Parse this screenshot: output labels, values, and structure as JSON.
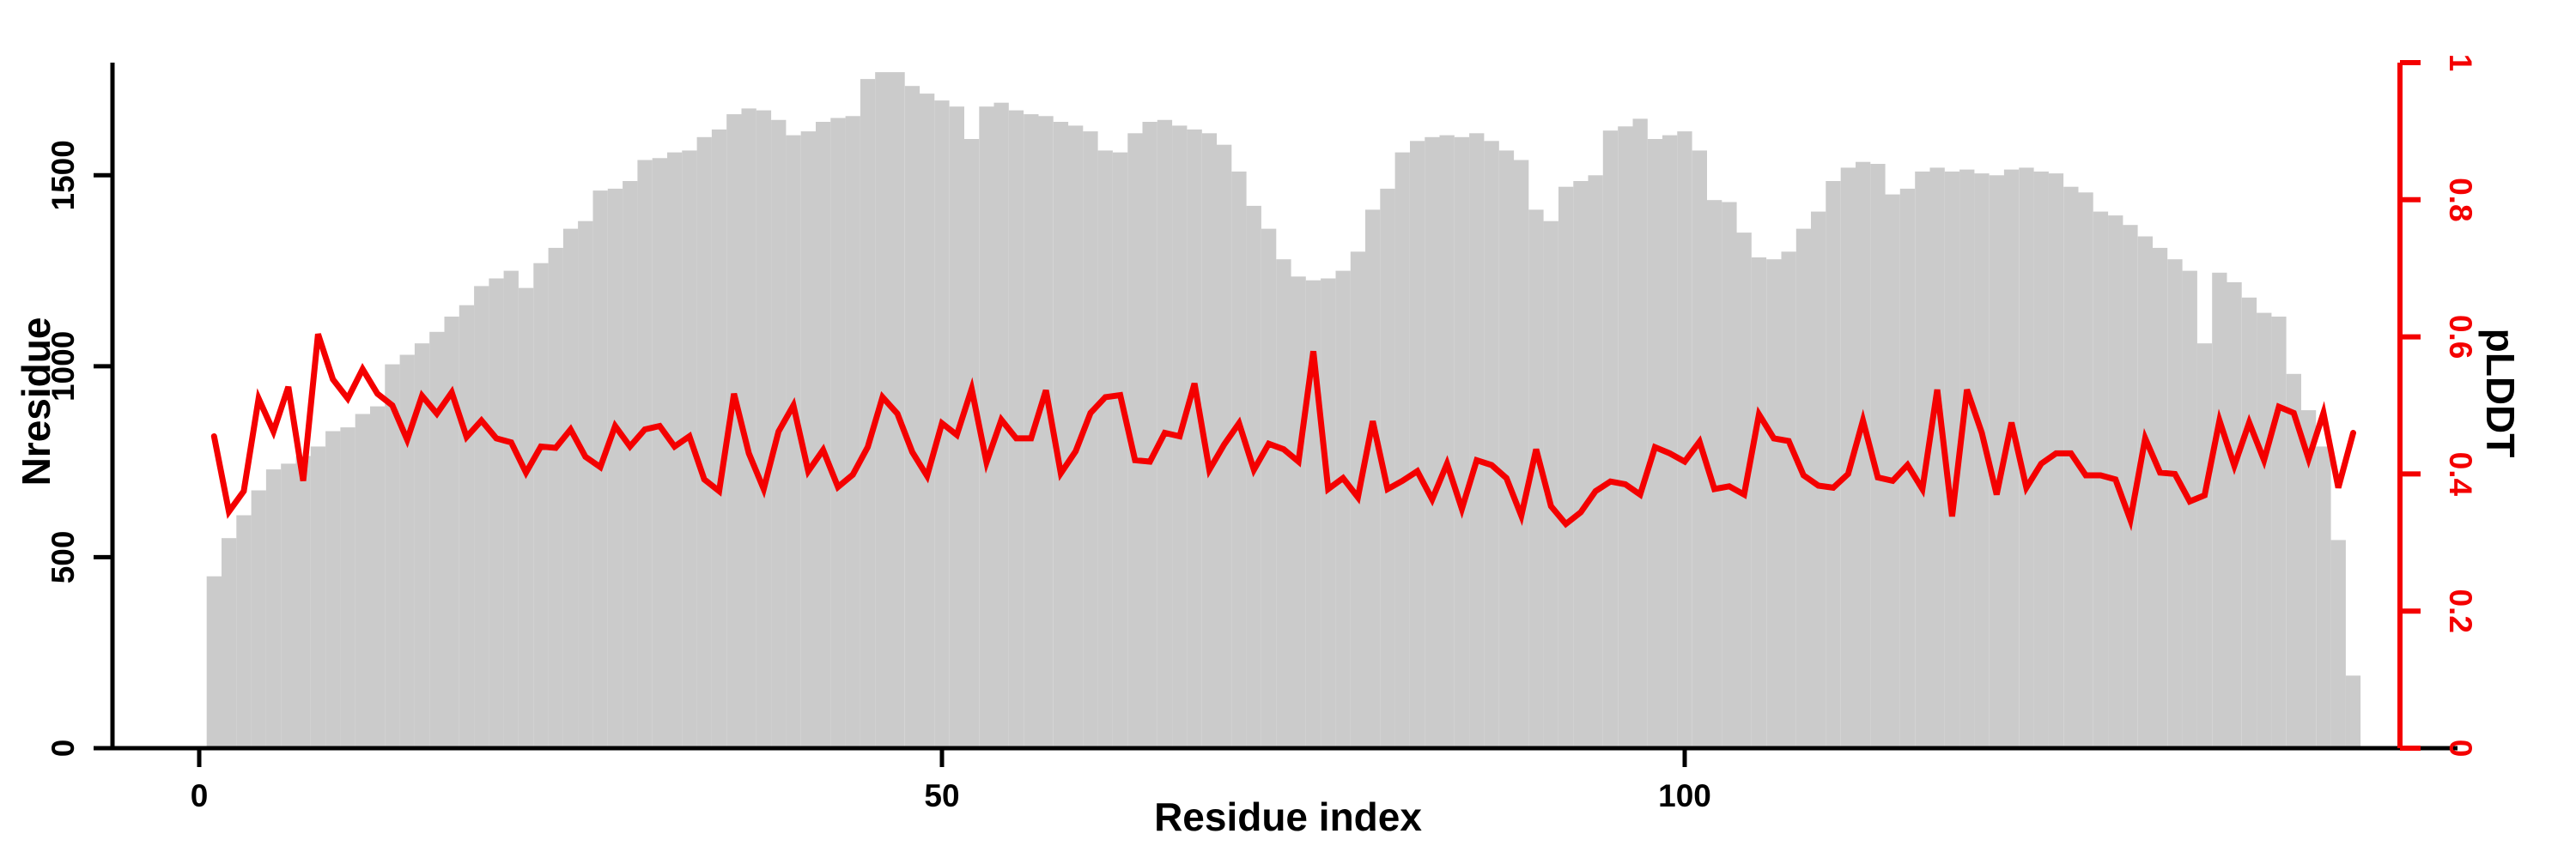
{
  "figure": {
    "background": "#ffffff",
    "bar_color": "#cbcbcb",
    "line_color": "#f40000",
    "axis_color": "#000000",
    "right_axis_color": "#f40000"
  },
  "chart_data": {
    "type": "bar",
    "title": "",
    "xlabel": "Residue index",
    "ylabel_left": "Nresidue",
    "ylabel_right": "pLDDT",
    "x_ticks": [
      0,
      50,
      100
    ],
    "y_ticks_left": [
      0,
      500,
      1000,
      1500
    ],
    "y_ticks_right": [
      0,
      0.2,
      0.4,
      0.6,
      0.8,
      1
    ],
    "y_tick_labels_right": [
      "0",
      "0.2",
      "0.4",
      "0.6",
      "0.8",
      "1"
    ],
    "xlim": [
      0,
      148
    ],
    "ylim_left": [
      0,
      1795
    ],
    "ylim_right": [
      0,
      1
    ],
    "grid": false,
    "legend_position": "none",
    "x": [
      1,
      2,
      3,
      4,
      5,
      6,
      7,
      8,
      9,
      10,
      11,
      12,
      13,
      14,
      15,
      16,
      17,
      18,
      19,
      20,
      21,
      22,
      23,
      24,
      25,
      26,
      27,
      28,
      29,
      30,
      31,
      32,
      33,
      34,
      35,
      36,
      37,
      38,
      39,
      40,
      41,
      42,
      43,
      44,
      45,
      46,
      47,
      48,
      49,
      50,
      51,
      52,
      53,
      54,
      55,
      56,
      57,
      58,
      59,
      60,
      61,
      62,
      63,
      64,
      65,
      66,
      67,
      68,
      69,
      70,
      71,
      72,
      73,
      74,
      75,
      76,
      77,
      78,
      79,
      80,
      81,
      82,
      83,
      84,
      85,
      86,
      87,
      88,
      89,
      90,
      91,
      92,
      93,
      94,
      95,
      96,
      97,
      98,
      99,
      100,
      101,
      102,
      103,
      104,
      105,
      106,
      107,
      108,
      109,
      110,
      111,
      112,
      113,
      114,
      115,
      116,
      117,
      118,
      119,
      120,
      121,
      122,
      123,
      124,
      125,
      126,
      127,
      128,
      129,
      130,
      131,
      132,
      133,
      134,
      135,
      136,
      137,
      138,
      139,
      140,
      141,
      142,
      143,
      144,
      145
    ],
    "series": [
      {
        "name": "Nresidue",
        "type": "bar",
        "axis": "left",
        "color": "#cbcbcb",
        "values": [
          450,
          550,
          610,
          675,
          730,
          745,
          765,
          790,
          830,
          840,
          875,
          895,
          1005,
          1030,
          1060,
          1090,
          1130,
          1160,
          1210,
          1230,
          1250,
          1205,
          1270,
          1310,
          1360,
          1380,
          1460,
          1465,
          1485,
          1540,
          1545,
          1560,
          1565,
          1600,
          1620,
          1660,
          1675,
          1670,
          1645,
          1605,
          1615,
          1640,
          1650,
          1655,
          1752,
          1770,
          1770,
          1734,
          1714,
          1696,
          1680,
          1595,
          1680,
          1690,
          1670,
          1660,
          1655,
          1640,
          1630,
          1615,
          1565,
          1560,
          1610,
          1640,
          1645,
          1630,
          1620,
          1610,
          1580,
          1510,
          1420,
          1360,
          1280,
          1235,
          1225,
          1230,
          1250,
          1300,
          1410,
          1465,
          1560,
          1590,
          1600,
          1605,
          1600,
          1610,
          1590,
          1565,
          1540,
          1410,
          1380,
          1470,
          1485,
          1500,
          1617,
          1628,
          1648,
          1595,
          1605,
          1615,
          1565,
          1435,
          1430,
          1350,
          1285,
          1280,
          1300,
          1360,
          1405,
          1485,
          1520,
          1535,
          1530,
          1450,
          1465,
          1510,
          1520,
          1510,
          1515,
          1505,
          1500,
          1515,
          1520,
          1510,
          1505,
          1470,
          1455,
          1405,
          1395,
          1370,
          1340,
          1310,
          1280,
          1250,
          1060,
          1245,
          1220,
          1180,
          1140,
          1130,
          980,
          885,
          790,
          545,
          190
        ]
      },
      {
        "name": "pLDDT",
        "type": "line",
        "axis": "right",
        "color": "#f40000",
        "values": [
          0.455,
          0.345,
          0.375,
          0.51,
          0.462,
          0.527,
          0.39,
          0.604,
          0.538,
          0.51,
          0.553,
          0.517,
          0.5,
          0.45,
          0.514,
          0.488,
          0.519,
          0.454,
          0.478,
          0.452,
          0.446,
          0.402,
          0.44,
          0.438,
          0.465,
          0.425,
          0.41,
          0.47,
          0.44,
          0.465,
          0.47,
          0.44,
          0.455,
          0.392,
          0.375,
          0.517,
          0.43,
          0.378,
          0.462,
          0.5,
          0.404,
          0.435,
          0.381,
          0.399,
          0.439,
          0.512,
          0.488,
          0.432,
          0.397,
          0.474,
          0.457,
          0.524,
          0.417,
          0.479,
          0.452,
          0.452,
          0.522,
          0.401,
          0.433,
          0.489,
          0.512,
          0.515,
          0.42,
          0.418,
          0.46,
          0.455,
          0.532,
          0.406,
          0.443,
          0.474,
          0.406,
          0.444,
          0.436,
          0.418,
          0.579,
          0.378,
          0.394,
          0.366,
          0.477,
          0.378,
          0.39,
          0.404,
          0.363,
          0.415,
          0.349,
          0.42,
          0.413,
          0.394,
          0.339,
          0.436,
          0.353,
          0.327,
          0.344,
          0.375,
          0.389,
          0.385,
          0.37,
          0.439,
          0.43,
          0.418,
          0.447,
          0.378,
          0.382,
          0.37,
          0.487,
          0.452,
          0.448,
          0.398,
          0.383,
          0.38,
          0.4,
          0.478,
          0.395,
          0.39,
          0.413,
          0.378,
          0.523,
          0.338,
          0.523,
          0.46,
          0.37,
          0.475,
          0.38,
          0.415,
          0.43,
          0.43,
          0.398,
          0.398,
          0.392,
          0.333,
          0.452,
          0.402,
          0.4,
          0.36,
          0.369,
          0.478,
          0.412,
          0.475,
          0.42,
          0.498,
          0.489,
          0.422,
          0.489,
          0.38,
          0.46
        ]
      }
    ]
  }
}
